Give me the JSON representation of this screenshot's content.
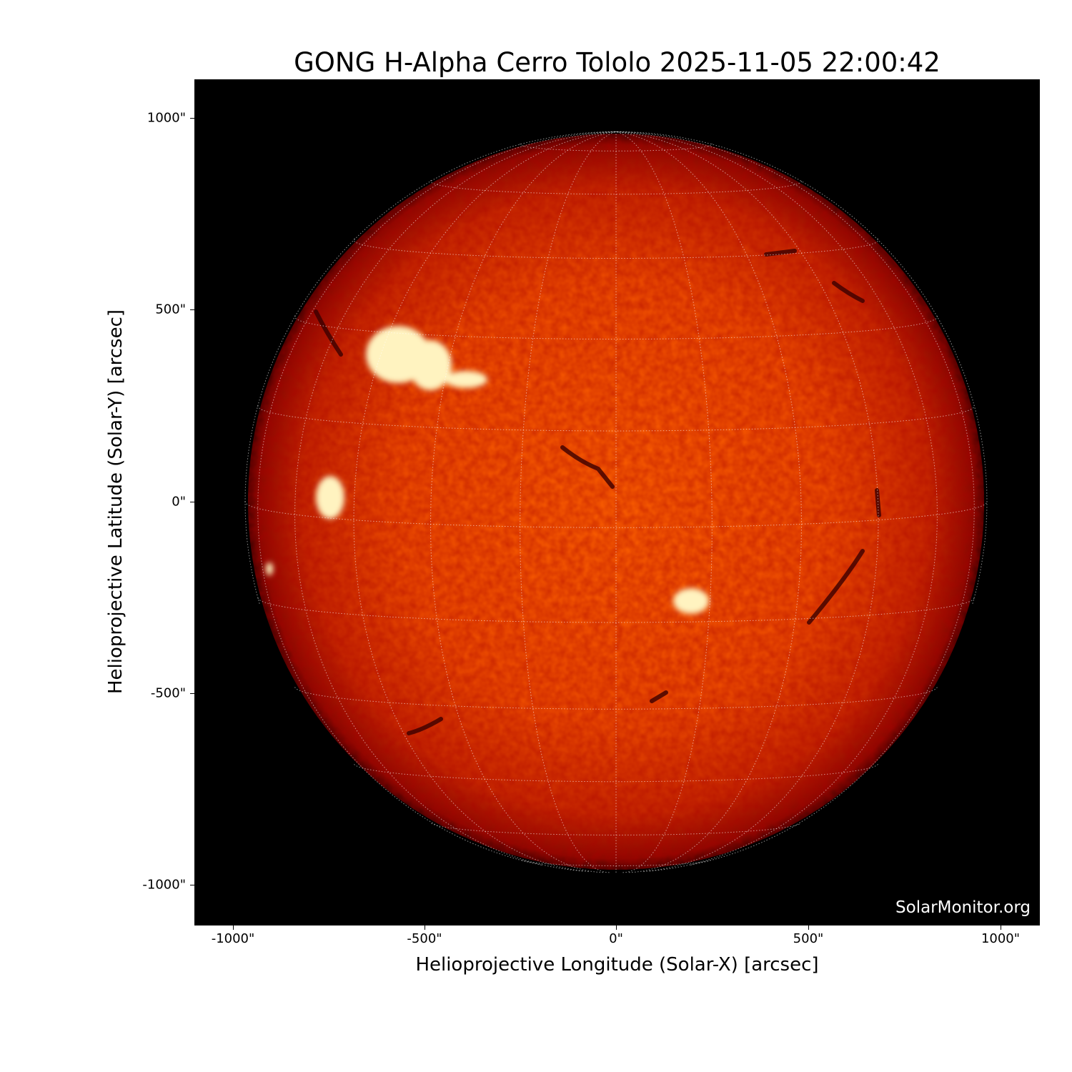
{
  "title": "GONG H-Alpha Cerro Tololo 2025-11-05 22:00:42",
  "xlabel": "Helioprojective Longitude (Solar-X) [arcsec]",
  "ylabel": "Helioprojective Latitude (Solar-Y) [arcsec]",
  "xticks": [
    "-1000\"",
    "-500\"",
    "0\"",
    "500\"",
    "1000\""
  ],
  "yticks": [
    "1000\"",
    "500\"",
    "0\"",
    "-500\"",
    "-1000\""
  ],
  "watermark": "SolarMonitor.org",
  "colors": {
    "disk_center": "#ff6a00",
    "disk_limb": "#7a0000",
    "background": "#000000",
    "grid": "#ffffff"
  }
}
